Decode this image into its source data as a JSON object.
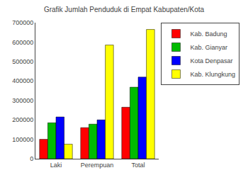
{
  "chart_data": {
    "type": "bar",
    "title": "Grafik Jumlah Penduduk di Empat Kabupaten/Kota",
    "categories": [
      "Laki",
      "Perempuan",
      "Total"
    ],
    "series": [
      {
        "name": "Kab. Badung",
        "color": "#FF0000",
        "values": [
          100000,
          160000,
          265000
        ]
      },
      {
        "name": "Kab. Gianyar",
        "color": "#00BB00",
        "values": [
          185000,
          178000,
          368000
        ]
      },
      {
        "name": "Kota Denpasar",
        "color": "#0000FF",
        "values": [
          215000,
          200000,
          420000
        ]
      },
      {
        "name": "Kab. Klungkung",
        "color": "#FFFF00",
        "values": [
          75000,
          585000,
          665000
        ]
      }
    ],
    "ylim": [
      0,
      700000
    ],
    "yticks": [
      0,
      100000,
      200000,
      300000,
      400000,
      500000,
      600000,
      700000
    ],
    "grid": false,
    "legend": "right"
  }
}
